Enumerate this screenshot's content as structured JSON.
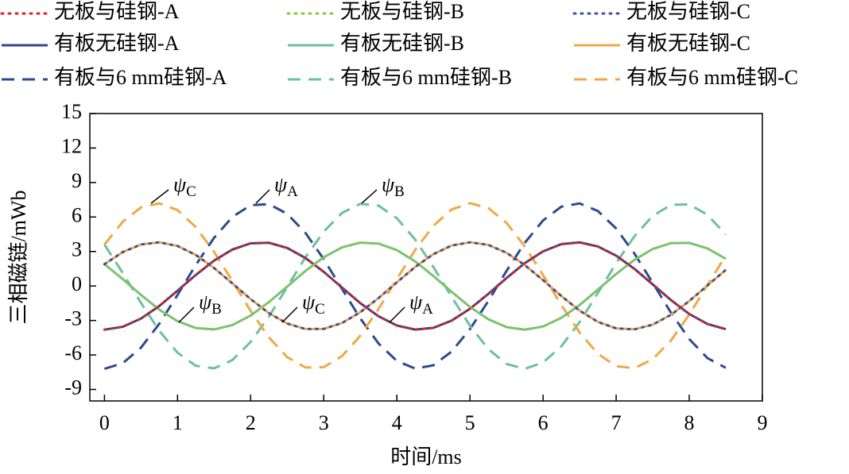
{
  "chart_data": {
    "type": "line",
    "xlabel": "时间/ms",
    "ylabel": "三相磁链/mWb",
    "x": [
      0,
      0.25,
      0.5,
      0.75,
      1,
      1.25,
      1.5,
      1.75,
      2,
      2.25,
      2.5,
      2.75,
      3,
      3.25,
      3.5,
      3.75,
      4,
      4.25,
      4.5,
      4.75,
      5,
      5.25,
      5.5,
      5.75,
      6,
      6.25,
      6.5,
      6.75,
      7,
      7.25,
      7.5,
      7.75,
      8,
      8.25,
      8.5
    ],
    "xlim": [
      -0.2,
      9
    ],
    "xticks": [
      0,
      1,
      2,
      3,
      4,
      5,
      6,
      7,
      8,
      9
    ],
    "ylim": [
      -10,
      15
    ],
    "yticks": [
      -9,
      -6,
      -3,
      0,
      3,
      6,
      9,
      12,
      15
    ],
    "series": [
      {
        "name": "无板与硅钢-A",
        "color": "#e02020",
        "style": "dotted",
        "values": [
          -3.8,
          -3.55,
          -2.83,
          -1.74,
          -0.41,
          0.96,
          2.21,
          3.17,
          3.71,
          3.76,
          3.31,
          2.43,
          1.23,
          -0.14,
          -1.49,
          -2.64,
          -3.44,
          -3.79,
          -3.64,
          -3.01,
          -1.98,
          -0.69,
          0.69,
          1.98,
          3.01,
          3.64,
          3.79,
          3.44,
          2.64,
          1.49,
          0.14,
          -1.23,
          -2.43,
          -3.31,
          -3.76
        ]
      },
      {
        "name": "无板与硅钢-B",
        "color": "#8cc63f",
        "style": "dotted",
        "values": [
          1.9,
          0.6,
          -0.78,
          -2.06,
          -3.06,
          -3.66,
          -3.78,
          -3.4,
          -2.57,
          -1.4,
          -0.05,
          1.31,
          2.5,
          3.36,
          3.77,
          3.69,
          3.12,
          2.14,
          0.87,
          -0.51,
          -1.82,
          -2.89,
          -3.58,
          -3.8,
          -3.52,
          -2.77,
          -1.66,
          -0.32,
          1.05,
          2.28,
          3.22,
          3.73,
          3.75,
          3.27,
          2.36
        ]
      },
      {
        "name": "无板与硅钢-C",
        "color": "#4050a0",
        "style": "dotted",
        "values": [
          1.9,
          2.95,
          3.61,
          3.8,
          3.48,
          2.7,
          1.57,
          0.23,
          -1.14,
          -2.36,
          -3.27,
          -3.74,
          -3.73,
          -3.22,
          -2.28,
          -1.05,
          0.32,
          1.65,
          2.77,
          3.52,
          3.8,
          3.58,
          2.89,
          1.82,
          0.51,
          -0.87,
          -2.14,
          -3.12,
          -3.69,
          -3.77,
          -3.36,
          -2.5,
          -1.31,
          0.05,
          1.4
        ]
      },
      {
        "name": "有板无硅钢-A",
        "color": "#2e4a8c",
        "style": "solid",
        "values": [
          -3.8,
          -3.55,
          -2.83,
          -1.74,
          -0.41,
          0.96,
          2.21,
          3.17,
          3.71,
          3.76,
          3.31,
          2.43,
          1.23,
          -0.14,
          -1.49,
          -2.64,
          -3.44,
          -3.79,
          -3.64,
          -3.01,
          -1.98,
          -0.69,
          0.69,
          1.98,
          3.01,
          3.64,
          3.79,
          3.44,
          2.64,
          1.49,
          0.14,
          -1.23,
          -2.43,
          -3.31,
          -3.76
        ]
      },
      {
        "name": "有板无硅钢-B",
        "color": "#6cc0a0",
        "style": "solid",
        "values": [
          1.9,
          0.6,
          -0.78,
          -2.06,
          -3.06,
          -3.66,
          -3.78,
          -3.4,
          -2.57,
          -1.4,
          -0.05,
          1.31,
          2.5,
          3.36,
          3.77,
          3.69,
          3.12,
          2.14,
          0.87,
          -0.51,
          -1.82,
          -2.89,
          -3.58,
          -3.8,
          -3.52,
          -2.77,
          -1.66,
          -0.32,
          1.05,
          2.28,
          3.22,
          3.73,
          3.75,
          3.27,
          2.36
        ]
      },
      {
        "name": "有板无硅钢-C",
        "color": "#f0a848",
        "style": "solid",
        "values": [
          1.9,
          2.95,
          3.61,
          3.8,
          3.48,
          2.7,
          1.57,
          0.23,
          -1.14,
          -2.36,
          -3.27,
          -3.74,
          -3.73,
          -3.22,
          -2.28,
          -1.05,
          0.32,
          1.65,
          2.77,
          3.52,
          3.8,
          3.58,
          2.89,
          1.82,
          0.51,
          -0.87,
          -2.14,
          -3.12,
          -3.69,
          -3.77,
          -3.36,
          -2.5,
          -1.31,
          0.05,
          1.4
        ]
      },
      {
        "name": "有板与6 mm硅钢-A",
        "color": "#2e4a8c",
        "style": "dashed",
        "values": [
          -7.2,
          -6.72,
          -5.36,
          -3.29,
          -0.78,
          1.82,
          4.19,
          6.0,
          7.03,
          7.12,
          6.28,
          4.61,
          2.33,
          -0.26,
          -2.82,
          -5.0,
          -6.52,
          -7.18,
          -6.9,
          -5.7,
          -3.75,
          -1.31,
          1.31,
          3.75,
          5.7,
          6.9,
          7.18,
          6.52,
          5.0,
          2.82,
          0.27,
          -2.33,
          -4.61,
          -6.28,
          -7.12
        ]
      },
      {
        "name": "有板与6 mm硅钢-B",
        "color": "#6cc0a0",
        "style": "dashed",
        "values": [
          3.6,
          1.14,
          -1.48,
          -3.9,
          -5.8,
          -6.94,
          -7.16,
          -6.44,
          -4.87,
          -2.66,
          -0.09,
          2.49,
          4.74,
          6.36,
          7.15,
          6.99,
          5.9,
          4.05,
          1.65,
          -0.96,
          -3.45,
          -5.48,
          -6.78,
          -7.2,
          -6.66,
          -5.25,
          -3.14,
          -0.61,
          1.99,
          4.33,
          6.1,
          7.06,
          7.1,
          6.19,
          4.47
        ]
      },
      {
        "name": "有板与6 mm硅钢-C",
        "color": "#f0a848",
        "style": "dashed",
        "values": [
          3.6,
          5.59,
          6.84,
          7.19,
          6.6,
          5.12,
          2.97,
          0.44,
          -2.16,
          -4.47,
          -6.19,
          -7.09,
          -7.06,
          -6.1,
          -4.33,
          -1.99,
          0.61,
          3.13,
          5.24,
          6.66,
          7.2,
          6.78,
          5.48,
          3.45,
          0.96,
          -1.65,
          -4.05,
          -5.9,
          -6.98,
          -7.15,
          -6.36,
          -4.74,
          -2.49,
          0.09,
          2.65
        ]
      }
    ],
    "annotations": [
      {
        "symbol": "ψ",
        "subscript": "C"
      },
      {
        "symbol": "ψ",
        "subscript": "A"
      },
      {
        "symbol": "ψ",
        "subscript": "B"
      },
      {
        "symbol": "ψ",
        "subscript": "B"
      },
      {
        "symbol": "ψ",
        "subscript": "C"
      },
      {
        "symbol": "ψ",
        "subscript": "A"
      }
    ]
  }
}
